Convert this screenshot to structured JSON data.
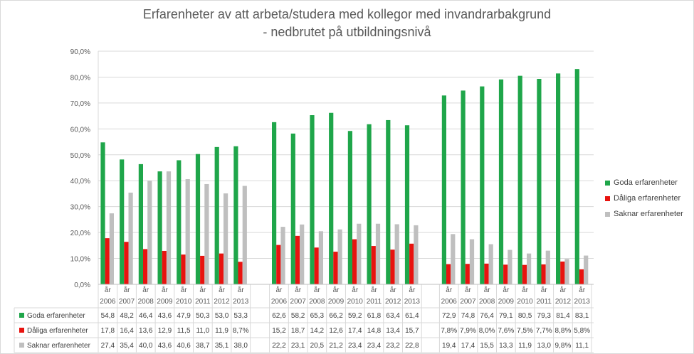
{
  "chart_data": {
    "type": "bar",
    "title": [
      "Erfarenheter av att arbeta/studera med kollegor med invandrarbakgrund",
      "- nedbrutet på utbildningsnivå"
    ],
    "ylim": [
      0,
      90
    ],
    "yticks": [
      0,
      10,
      20,
      30,
      40,
      50,
      60,
      70,
      80,
      90
    ],
    "ytick_labels": [
      "0,0%",
      "10,0%",
      "20,0%",
      "30,0%",
      "40,0%",
      "50,0%",
      "60,0%",
      "70,0%",
      "80,0%",
      "90,0%"
    ],
    "grid": true,
    "legend_position": "right",
    "category_prefix": "år",
    "groups": [
      {
        "categories": [
          "2006",
          "2007",
          "2008",
          "2009",
          "2010",
          "2011",
          "2012",
          "2013"
        ],
        "series": [
          {
            "name": "Goda erfarenheter",
            "values": [
              54.8,
              48.2,
              46.4,
              43.6,
              47.9,
              50.3,
              53.0,
              53.3
            ],
            "labels": [
              "54,8",
              "48,2",
              "46,4",
              "43,6",
              "47,9",
              "50,3",
              "53,0",
              "53,3"
            ]
          },
          {
            "name": "Dåliga erfarenheter",
            "values": [
              17.8,
              16.4,
              13.6,
              12.9,
              11.5,
              11.0,
              11.9,
              8.7
            ],
            "labels": [
              "17,8",
              "16,4",
              "13,6",
              "12,9",
              "11,5",
              "11,0",
              "11,9",
              "8,7%"
            ]
          },
          {
            "name": "Saknar erfarenheter",
            "values": [
              27.4,
              35.4,
              40.0,
              43.6,
              40.6,
              38.7,
              35.1,
              38.0
            ],
            "labels": [
              "27,4",
              "35,4",
              "40,0",
              "43,6",
              "40,6",
              "38,7",
              "35,1",
              "38,0"
            ]
          }
        ]
      },
      {
        "categories": [
          "2006",
          "2007",
          "2008",
          "2009",
          "2010",
          "2011",
          "2012",
          "2013"
        ],
        "series": [
          {
            "name": "Goda erfarenheter",
            "values": [
              62.6,
              58.2,
              65.3,
              66.2,
              59.2,
              61.8,
              63.4,
              61.4
            ],
            "labels": [
              "62,6",
              "58,2",
              "65,3",
              "66,2",
              "59,2",
              "61,8",
              "63,4",
              "61,4"
            ]
          },
          {
            "name": "Dåliga erfarenheter",
            "values": [
              15.2,
              18.7,
              14.2,
              12.6,
              17.4,
              14.8,
              13.4,
              15.7
            ],
            "labels": [
              "15,2",
              "18,7",
              "14,2",
              "12,6",
              "17,4",
              "14,8",
              "13,4",
              "15,7"
            ]
          },
          {
            "name": "Saknar erfarenheter",
            "values": [
              22.2,
              23.1,
              20.5,
              21.2,
              23.4,
              23.4,
              23.2,
              22.8
            ],
            "labels": [
              "22,2",
              "23,1",
              "20,5",
              "21,2",
              "23,4",
              "23,4",
              "23,2",
              "22,8"
            ]
          }
        ]
      },
      {
        "categories": [
          "2006",
          "2007",
          "2008",
          "2009",
          "2010",
          "2011",
          "2012",
          "2013"
        ],
        "series": [
          {
            "name": "Goda erfarenheter",
            "values": [
              72.9,
              74.8,
              76.4,
              79.1,
              80.5,
              79.3,
              81.4,
              83.1
            ],
            "labels": [
              "72,9",
              "74,8",
              "76,4",
              "79,1",
              "80,5",
              "79,3",
              "81,4",
              "83,1"
            ]
          },
          {
            "name": "Dåliga erfarenheter",
            "values": [
              7.8,
              7.9,
              8.0,
              7.6,
              7.5,
              7.7,
              8.8,
              5.8
            ],
            "labels": [
              "7,8%",
              "7,9%",
              "8,0%",
              "7,6%",
              "7,5%",
              "7,7%",
              "8,8%",
              "5,8%"
            ]
          },
          {
            "name": "Saknar erfarenheter",
            "values": [
              19.4,
              17.4,
              15.5,
              13.3,
              11.9,
              13.0,
              9.8,
              11.1
            ],
            "labels": [
              "19,4",
              "17,4",
              "15,5",
              "13,3",
              "11,9",
              "13,0",
              "9,8%",
              "11,1"
            ]
          }
        ]
      }
    ],
    "series_colors": [
      "#1fa64a",
      "#e8130f",
      "#bfbfbf"
    ],
    "series_names": [
      "Goda erfarenheter",
      "Dåliga erfarenheter",
      "Saknar erfarenheter"
    ]
  }
}
